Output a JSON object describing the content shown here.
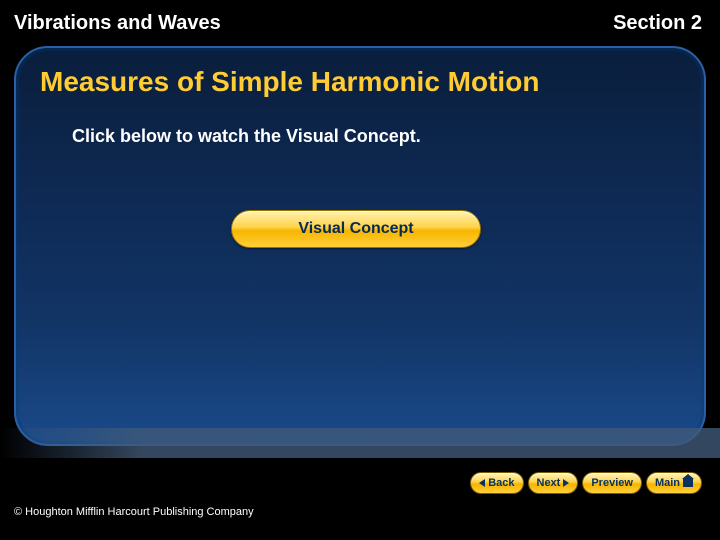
{
  "header": {
    "left": "Vibrations and Waves",
    "right": "Section 2"
  },
  "content": {
    "title": "Measures of Simple Harmonic Motion",
    "instruction": "Click below to watch the Visual Concept.",
    "button_label": "Visual Concept"
  },
  "nav": {
    "back": "Back",
    "next": "Next",
    "preview": "Preview",
    "main": "Main"
  },
  "footer": {
    "copyright": "© Houghton Mifflin Harcourt Publishing Company"
  },
  "colors": {
    "title_color": "#ffcc33",
    "text_color": "#ffffff",
    "box_gradient_top": "#0a1e3c",
    "box_gradient_bottom": "#1a4a8a",
    "button_gradient_top": "#fff3b0",
    "button_gradient_bottom": "#ffcf3a",
    "button_text": "#062a57"
  }
}
